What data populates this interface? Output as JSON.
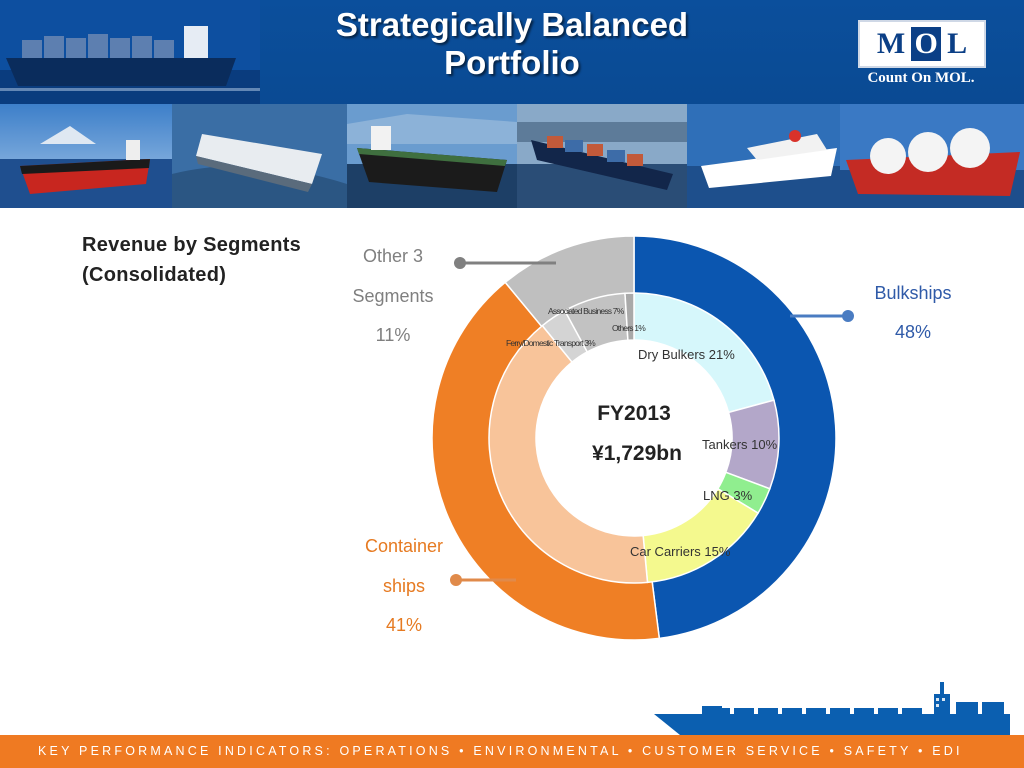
{
  "slide": {
    "title": "Strategically Balanced Portfolio",
    "logo": {
      "letters": [
        "M",
        "O",
        "L"
      ],
      "tagline": "Count On MOL."
    },
    "photos": [
      "bulk-carrier-photo",
      "car-carrier-photo",
      "tanker-photo",
      "container-ship-photo",
      "ferry-photo",
      "lng-carrier-photo"
    ],
    "footer": "KEY PERFORMANCE INDICATORS:  OPERATIONS  •  ENVIRONMENTAL  •  CUSTOMER SERVICE  •  SAFETY  •  EDI"
  },
  "chart_data": {
    "type": "pie",
    "variant": "nested-donut",
    "title": "Revenue by Segments (Consolidated)",
    "center_label": [
      "FY2013",
      "¥1,729bn"
    ],
    "outer_ring": [
      {
        "name": "Bulkships",
        "value": 48,
        "label": [
          "Bulkships",
          "48%"
        ],
        "color": "#0b56b0"
      },
      {
        "name": "Container ships",
        "value": 41,
        "label": [
          "Container",
          "ships",
          "41%"
        ],
        "color": "#ef7f25"
      },
      {
        "name": "Other 3 Segments",
        "value": 11,
        "label": [
          "Other 3",
          "Segments",
          "11%"
        ],
        "color": "#bfbfbf"
      }
    ],
    "inner_ring": [
      {
        "name": "Dry Bulkers",
        "value": 21,
        "label": "Dry Bulkers 21%",
        "color": "#d6f7fb"
      },
      {
        "name": "Tankers",
        "value": 10,
        "label": "Tankers 10%",
        "color": "#b3a7c9"
      },
      {
        "name": "LNG",
        "value": 3,
        "label": "LNG  3%",
        "color": "#90ee8f"
      },
      {
        "name": "Car Carriers",
        "value": 15,
        "label": "Car Carriers 15%",
        "color": "#f4f98e"
      },
      {
        "name": "Containerships",
        "value": 41,
        "label": "",
        "color": "#f8c49a"
      },
      {
        "name": "Ferry/Domestic Transport",
        "value": 3,
        "label": "Ferry/Domestic Transport 3%",
        "color": "#d4d4d4"
      },
      {
        "name": "Associated Business",
        "value": 7,
        "label": "Associated Business 7%",
        "color": "#c2c2c2"
      },
      {
        "name": "Others",
        "value": 1,
        "label": "Others 1%",
        "color": "#a9a9a9"
      }
    ],
    "colors": {
      "outer_label_blue": "#2f5aa8",
      "outer_label_orange": "#e67a21",
      "outer_label_gray": "#7f7f7f",
      "leader_gray": "#808080",
      "leader_blue": "#4a7cc2",
      "leader_orange": "#e08a4a"
    }
  }
}
